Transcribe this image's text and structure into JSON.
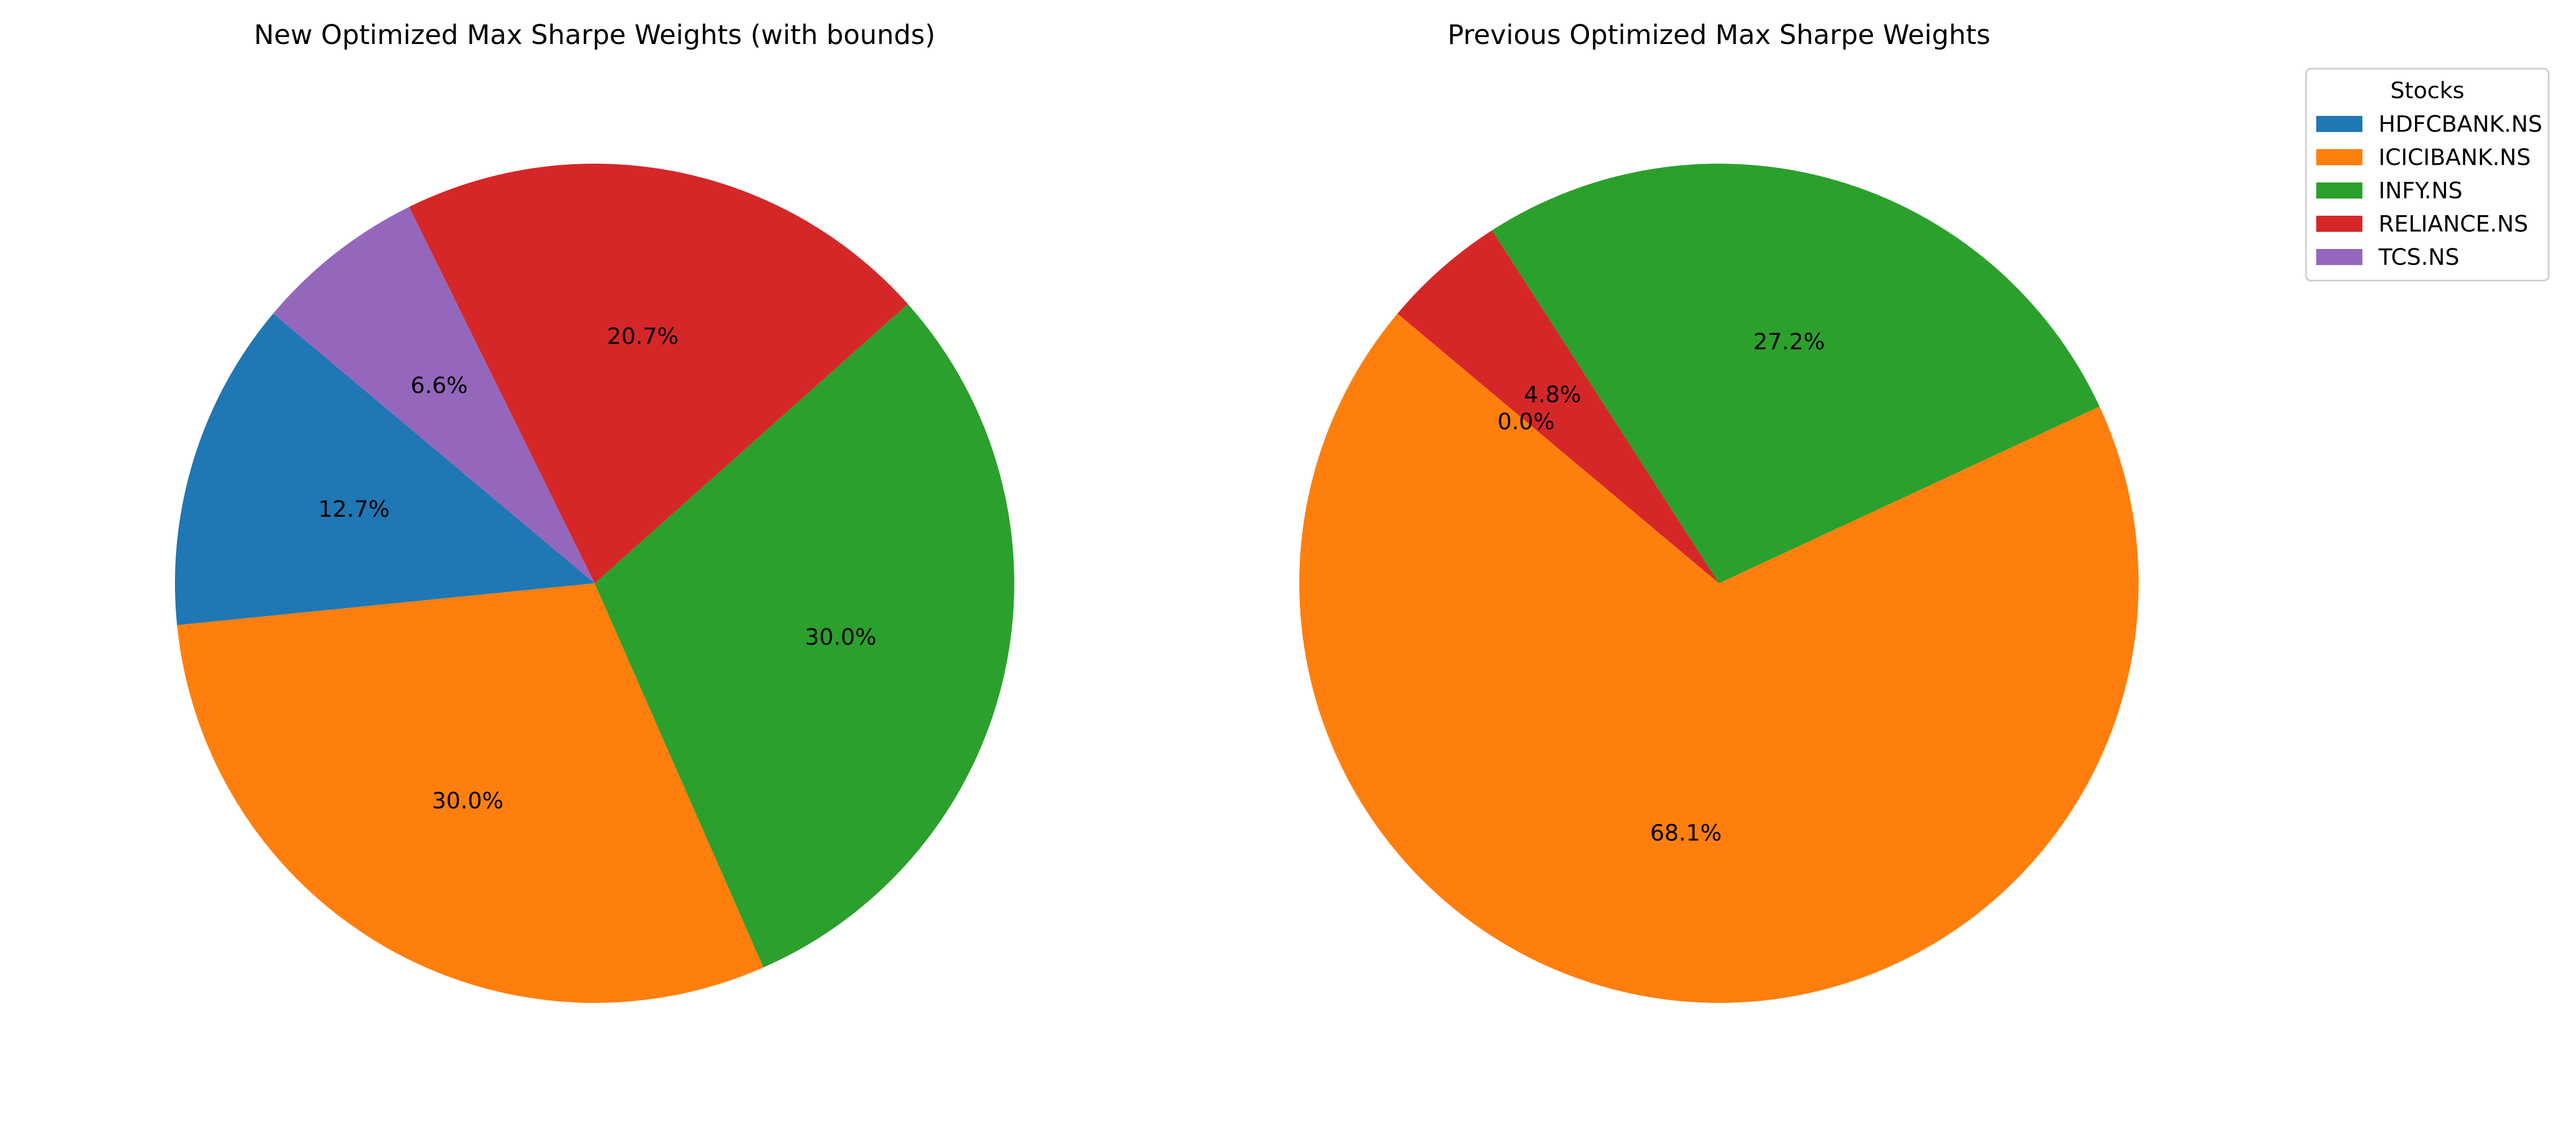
{
  "chart_data": [
    {
      "type": "pie",
      "title": "New Optimized Max Sharpe Weights (with bounds)",
      "labels": [
        "HDFCBANK.NS",
        "ICICIBANK.NS",
        "INFY.NS",
        "RELIANCE.NS",
        "TCS.NS"
      ],
      "values": [
        12.7,
        30.0,
        30.0,
        20.7,
        6.6
      ],
      "display_labels": [
        "12.7%",
        "30.0%",
        "30.0%",
        "20.7%",
        "6.6%"
      ],
      "start_angle_deg": 140,
      "direction": "counterclockwise"
    },
    {
      "type": "pie",
      "title": "Previous Optimized Max Sharpe Weights",
      "labels": [
        "HDFCBANK.NS",
        "ICICIBANK.NS",
        "INFY.NS",
        "RELIANCE.NS",
        "TCS.NS"
      ],
      "values": [
        0.0,
        68.1,
        27.2,
        4.8,
        0.0
      ],
      "display_labels": [
        "0.0%",
        "68.1%",
        "27.2%",
        "4.8%",
        "0.0%"
      ],
      "start_angle_deg": 140,
      "direction": "counterclockwise"
    }
  ],
  "legend": {
    "title": "Stocks",
    "placement": "top-right",
    "items": [
      "HDFCBANK.NS",
      "ICICIBANK.NS",
      "INFY.NS",
      "RELIANCE.NS",
      "TCS.NS"
    ]
  },
  "colors": [
    "#1f77b4",
    "#ff7f0e",
    "#2ca02c",
    "#d62728",
    "#9467bd"
  ]
}
